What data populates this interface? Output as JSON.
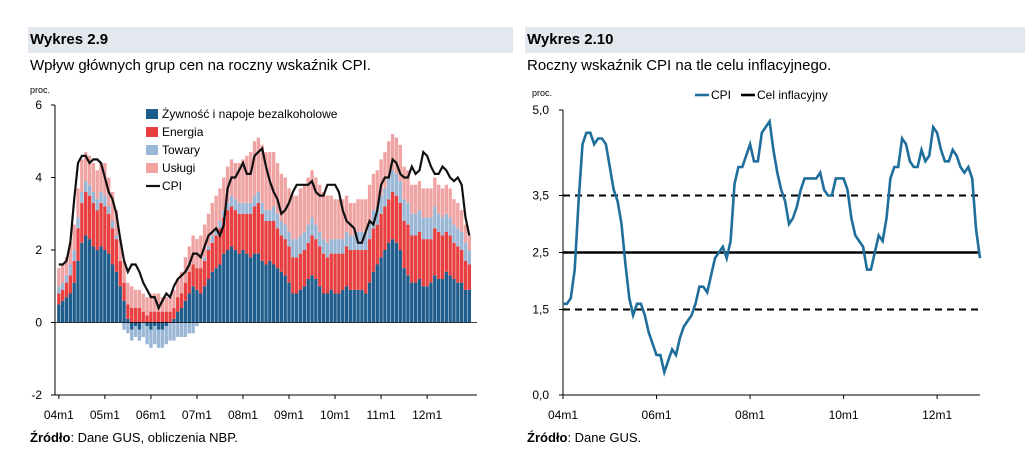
{
  "left": {
    "header": "Wykres 2.9",
    "subtitle": "Wpływ głównych grup cen na roczny wskaźnik CPI.",
    "source_label": "Źródło",
    "source_text": ": Dane GUS, obliczenia NBP."
  },
  "right": {
    "header": "Wykres 2.10",
    "subtitle": "Roczny wskaźnik CPI na tle celu inflacyjnego.",
    "source_label": "Źródło",
    "source_text": ": Dane GUS."
  },
  "colors": {
    "food": "#1f5d8c",
    "energy": "#e84040",
    "goods": "#9bb7d6",
    "services": "#f0a3a3",
    "cpi_left": "#111111",
    "cpi_right": "#1f6e9c",
    "target": "#000000"
  },
  "chart_data": [
    {
      "type": "bar",
      "stacked": true,
      "unit_label": "proc.",
      "ylim": [
        -2,
        6
      ],
      "yticks": [
        "-2",
        "0",
        "2",
        "4",
        "6"
      ],
      "x_start": "2004-01",
      "x_tick_labels": [
        "04m1",
        "05m1",
        "06m1",
        "07m1",
        "08m1",
        "09m1",
        "10m1",
        "11m1",
        "12m1"
      ],
      "legend_position": "top",
      "series": [
        {
          "name": "Żywność i napoje bezalkoholowe",
          "color_key": "food",
          "values": [
            0.5,
            0.6,
            0.7,
            0.8,
            1.1,
            1.7,
            2.2,
            2.4,
            2.3,
            2.1,
            2.0,
            2.1,
            2.0,
            1.9,
            1.6,
            1.4,
            1.0,
            0.6,
            0.1,
            -0.2,
            -0.1,
            -0.2,
            0.0,
            -0.1,
            -0.2,
            -0.1,
            -0.2,
            -0.2,
            -0.1,
            0.0,
            0.1,
            0.3,
            0.4,
            0.6,
            0.8,
            1.0,
            0.9,
            0.8,
            1.0,
            1.2,
            1.4,
            1.5,
            1.6,
            1.9,
            2.0,
            2.1,
            2.0,
            1.9,
            2.0,
            1.9,
            1.8,
            1.9,
            1.9,
            1.7,
            1.6,
            1.7,
            1.6,
            1.5,
            1.4,
            1.3,
            1.1,
            0.8,
            0.8,
            0.9,
            1.0,
            1.2,
            1.3,
            1.2,
            1.0,
            0.8,
            0.8,
            0.9,
            0.8,
            0.8,
            0.9,
            1.0,
            0.9,
            0.9,
            0.9,
            0.9,
            0.8,
            1.1,
            1.4,
            1.6,
            1.8,
            2.0,
            2.2,
            2.3,
            2.2,
            2.0,
            1.5,
            1.3,
            1.1,
            1.1,
            1.2,
            1.0,
            1.0,
            1.1,
            1.3,
            1.2,
            1.2,
            1.4,
            1.3,
            1.2,
            1.1,
            1.1,
            0.9,
            0.9
          ]
        },
        {
          "name": "Energia",
          "color_key": "energy",
          "values": [
            0.3,
            0.3,
            0.4,
            0.5,
            0.6,
            0.9,
            1.1,
            1.2,
            1.2,
            1.2,
            1.1,
            1.2,
            1.2,
            1.1,
            1.0,
            0.9,
            0.7,
            0.5,
            0.4,
            0.4,
            0.4,
            0.4,
            0.3,
            0.2,
            0.3,
            0.3,
            0.3,
            0.3,
            0.3,
            0.3,
            0.3,
            0.4,
            0.4,
            0.5,
            0.6,
            0.6,
            0.6,
            0.7,
            0.7,
            0.8,
            0.8,
            0.9,
            1.0,
            1.0,
            1.1,
            1.1,
            1.1,
            1.1,
            1.0,
            1.1,
            1.2,
            1.3,
            1.4,
            1.3,
            1.2,
            1.1,
            1.2,
            1.1,
            1.0,
            1.0,
            1.0,
            1.0,
            1.0,
            1.0,
            1.0,
            1.0,
            1.1,
            1.1,
            1.1,
            1.1,
            1.0,
            1.0,
            1.1,
            1.1,
            1.0,
            1.1,
            1.1,
            1.1,
            1.1,
            1.1,
            1.2,
            1.2,
            1.2,
            1.1,
            1.2,
            1.2,
            1.2,
            1.3,
            1.3,
            1.3,
            1.3,
            1.4,
            1.3,
            1.3,
            1.3,
            1.3,
            1.3,
            1.2,
            1.3,
            1.3,
            1.2,
            1.1,
            1.1,
            1.0,
            1.0,
            0.9,
            0.8,
            0.7
          ]
        },
        {
          "name": "Towary",
          "color_key": "goods",
          "values": [
            0.2,
            0.2,
            0.2,
            0.3,
            0.3,
            0.3,
            0.3,
            0.3,
            0.3,
            0.3,
            0.3,
            0.3,
            0.3,
            0.2,
            0.2,
            0.1,
            0.0,
            -0.2,
            -0.3,
            -0.3,
            -0.3,
            -0.3,
            -0.4,
            -0.5,
            -0.5,
            -0.5,
            -0.5,
            -0.5,
            -0.5,
            -0.5,
            -0.5,
            -0.4,
            -0.4,
            -0.4,
            -0.3,
            -0.3,
            -0.1,
            0.0,
            0.1,
            0.1,
            0.2,
            0.2,
            0.2,
            0.2,
            0.2,
            0.3,
            0.3,
            0.3,
            0.3,
            0.3,
            0.3,
            0.3,
            0.3,
            0.3,
            0.3,
            0.3,
            0.4,
            0.4,
            0.4,
            0.4,
            0.4,
            0.5,
            0.5,
            0.5,
            0.5,
            0.5,
            0.5,
            0.4,
            0.4,
            0.4,
            0.4,
            0.4,
            0.4,
            0.4,
            0.4,
            0.4,
            0.4,
            0.4,
            0.5,
            0.5,
            0.5,
            0.5,
            0.5,
            0.5,
            0.5,
            0.5,
            0.6,
            0.6,
            0.6,
            0.6,
            0.6,
            0.6,
            0.6,
            0.6,
            0.6,
            0.6,
            0.6,
            0.6,
            0.6,
            0.5,
            0.5,
            0.5,
            0.5,
            0.5,
            0.5,
            0.5,
            0.5,
            0.4
          ]
        },
        {
          "name": "Usługi",
          "color_key": "services",
          "values": [
            0.5,
            0.5,
            0.5,
            0.6,
            0.7,
            0.8,
            0.9,
            0.8,
            0.8,
            0.8,
            0.8,
            0.8,
            0.9,
            0.8,
            0.8,
            0.7,
            0.6,
            0.6,
            0.6,
            0.6,
            0.5,
            0.5,
            0.5,
            0.5,
            0.5,
            0.5,
            0.5,
            0.4,
            0.4,
            0.4,
            0.5,
            0.5,
            0.6,
            0.7,
            0.7,
            0.8,
            0.8,
            0.9,
            0.9,
            0.9,
            0.9,
            0.9,
            0.9,
            0.9,
            1.0,
            1.0,
            1.0,
            1.1,
            1.2,
            1.3,
            1.4,
            1.5,
            1.5,
            1.6,
            1.6,
            1.6,
            1.5,
            1.4,
            1.3,
            1.3,
            1.2,
            1.2,
            1.2,
            1.3,
            1.3,
            1.3,
            1.3,
            1.3,
            1.3,
            1.3,
            1.3,
            1.2,
            1.1,
            1.1,
            1.1,
            1.0,
            0.9,
            0.9,
            0.9,
            0.9,
            0.9,
            1.0,
            1.0,
            1.0,
            1.0,
            1.0,
            1.0,
            1.0,
            1.0,
            1.0,
            0.9,
            0.9,
            0.8,
            0.8,
            0.8,
            0.8,
            0.8,
            0.8,
            0.8,
            0.8,
            0.8,
            0.8,
            0.8,
            0.7,
            0.7,
            0.6,
            0.5,
            0.4
          ]
        },
        {
          "name": "CPI",
          "type": "line",
          "color_key": "cpi_left",
          "values": [
            1.6,
            1.6,
            1.7,
            2.2,
            3.4,
            4.4,
            4.6,
            4.6,
            4.4,
            4.5,
            4.5,
            4.4,
            4.0,
            3.6,
            3.4,
            3.0,
            2.3,
            1.7,
            1.4,
            1.6,
            1.6,
            1.4,
            1.1,
            0.9,
            0.7,
            0.7,
            0.4,
            0.6,
            0.8,
            0.7,
            1.0,
            1.2,
            1.3,
            1.4,
            1.6,
            1.9,
            1.9,
            1.8,
            2.1,
            2.4,
            2.5,
            2.6,
            2.4,
            2.7,
            3.7,
            4.0,
            4.0,
            4.2,
            4.4,
            4.1,
            4.1,
            4.6,
            4.7,
            4.8,
            4.3,
            3.9,
            3.6,
            3.4,
            3.0,
            3.1,
            3.3,
            3.6,
            3.8,
            3.8,
            3.8,
            3.8,
            3.9,
            3.6,
            3.5,
            3.5,
            3.8,
            3.8,
            3.8,
            3.6,
            3.1,
            2.8,
            2.7,
            2.6,
            2.2,
            2.2,
            2.5,
            2.8,
            2.7,
            3.1,
            3.8,
            4.0,
            4.0,
            4.5,
            4.4,
            4.1,
            4.0,
            4.0,
            4.3,
            4.1,
            4.2,
            4.7,
            4.6,
            4.3,
            4.1,
            4.1,
            4.3,
            4.2,
            4.0,
            3.9,
            4.0,
            3.8,
            2.9,
            2.4
          ]
        }
      ]
    },
    {
      "type": "line",
      "unit_label": "proc.",
      "ylim": [
        0,
        5
      ],
      "yticks": [
        "0,0",
        "1,5",
        "2,5",
        "3,5",
        "5,0"
      ],
      "x_start": "2004-01",
      "x_tick_labels": [
        "04m1",
        "06m1",
        "08m1",
        "10m1",
        "12m1"
      ],
      "legend_position": "top",
      "target": 2.5,
      "tolerance_band": [
        1.5,
        3.5
      ],
      "series": [
        {
          "name": "CPI",
          "color_key": "cpi_right",
          "values": [
            1.6,
            1.6,
            1.7,
            2.2,
            3.4,
            4.4,
            4.6,
            4.6,
            4.4,
            4.5,
            4.5,
            4.4,
            4.0,
            3.6,
            3.4,
            3.0,
            2.3,
            1.7,
            1.4,
            1.6,
            1.6,
            1.4,
            1.1,
            0.9,
            0.7,
            0.7,
            0.4,
            0.6,
            0.8,
            0.7,
            1.0,
            1.2,
            1.3,
            1.4,
            1.6,
            1.9,
            1.9,
            1.8,
            2.1,
            2.4,
            2.5,
            2.6,
            2.4,
            2.7,
            3.7,
            4.0,
            4.0,
            4.2,
            4.4,
            4.1,
            4.1,
            4.6,
            4.7,
            4.8,
            4.3,
            3.9,
            3.6,
            3.4,
            3.0,
            3.1,
            3.3,
            3.6,
            3.8,
            3.8,
            3.8,
            3.8,
            3.9,
            3.6,
            3.5,
            3.5,
            3.8,
            3.8,
            3.8,
            3.6,
            3.1,
            2.8,
            2.7,
            2.6,
            2.2,
            2.2,
            2.5,
            2.8,
            2.7,
            3.1,
            3.8,
            4.0,
            4.0,
            4.5,
            4.4,
            4.1,
            4.0,
            4.0,
            4.3,
            4.1,
            4.2,
            4.7,
            4.6,
            4.3,
            4.1,
            4.1,
            4.3,
            4.2,
            4.0,
            3.9,
            4.0,
            3.8,
            2.9,
            2.4
          ]
        },
        {
          "name": "Cel inflacyjny",
          "color_key": "target",
          "values": [
            2.5
          ]
        }
      ]
    }
  ]
}
